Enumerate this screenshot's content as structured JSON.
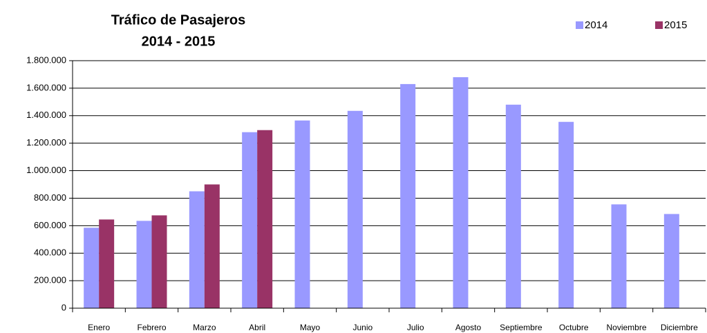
{
  "chart_data": {
    "type": "bar",
    "title": "Tráfico de Pasajeros",
    "subtitle": "2014 - 2015",
    "categories": [
      "Enero",
      "Febrero",
      "Marzo",
      "Abril",
      "Mayo",
      "Junio",
      "Julio",
      "Agosto",
      "Septiembre",
      "Octubre",
      "Noviembre",
      "Diciembre"
    ],
    "series": [
      {
        "name": "2014",
        "color": "#9999ff",
        "values": [
          585000,
          635000,
          850000,
          1280000,
          1365000,
          1435000,
          1630000,
          1680000,
          1480000,
          1355000,
          755000,
          685000
        ]
      },
      {
        "name": "2015",
        "color": "#993366",
        "values": [
          645000,
          675000,
          900000,
          1295000,
          null,
          null,
          null,
          null,
          null,
          null,
          null,
          null
        ]
      }
    ],
    "ylim": [
      0,
      1800000
    ],
    "yticks": [
      0,
      {
        "value": 200000,
        "label": "200.000"
      },
      {
        "value": 400000,
        "label": "400.000"
      },
      {
        "value": 600000,
        "label": "600.000"
      },
      {
        "value": 800000,
        "label": "800.000"
      },
      {
        "value": 1000000,
        "label": "1.000.000"
      },
      {
        "value": 1200000,
        "label": "1.200.000"
      },
      {
        "value": 1400000,
        "label": "1.400.000"
      },
      {
        "value": 1600000,
        "label": "1.600.000"
      },
      {
        "value": 1800000,
        "label": "1.800.000"
      }
    ],
    "grid": true,
    "legend_position": "top-right"
  }
}
